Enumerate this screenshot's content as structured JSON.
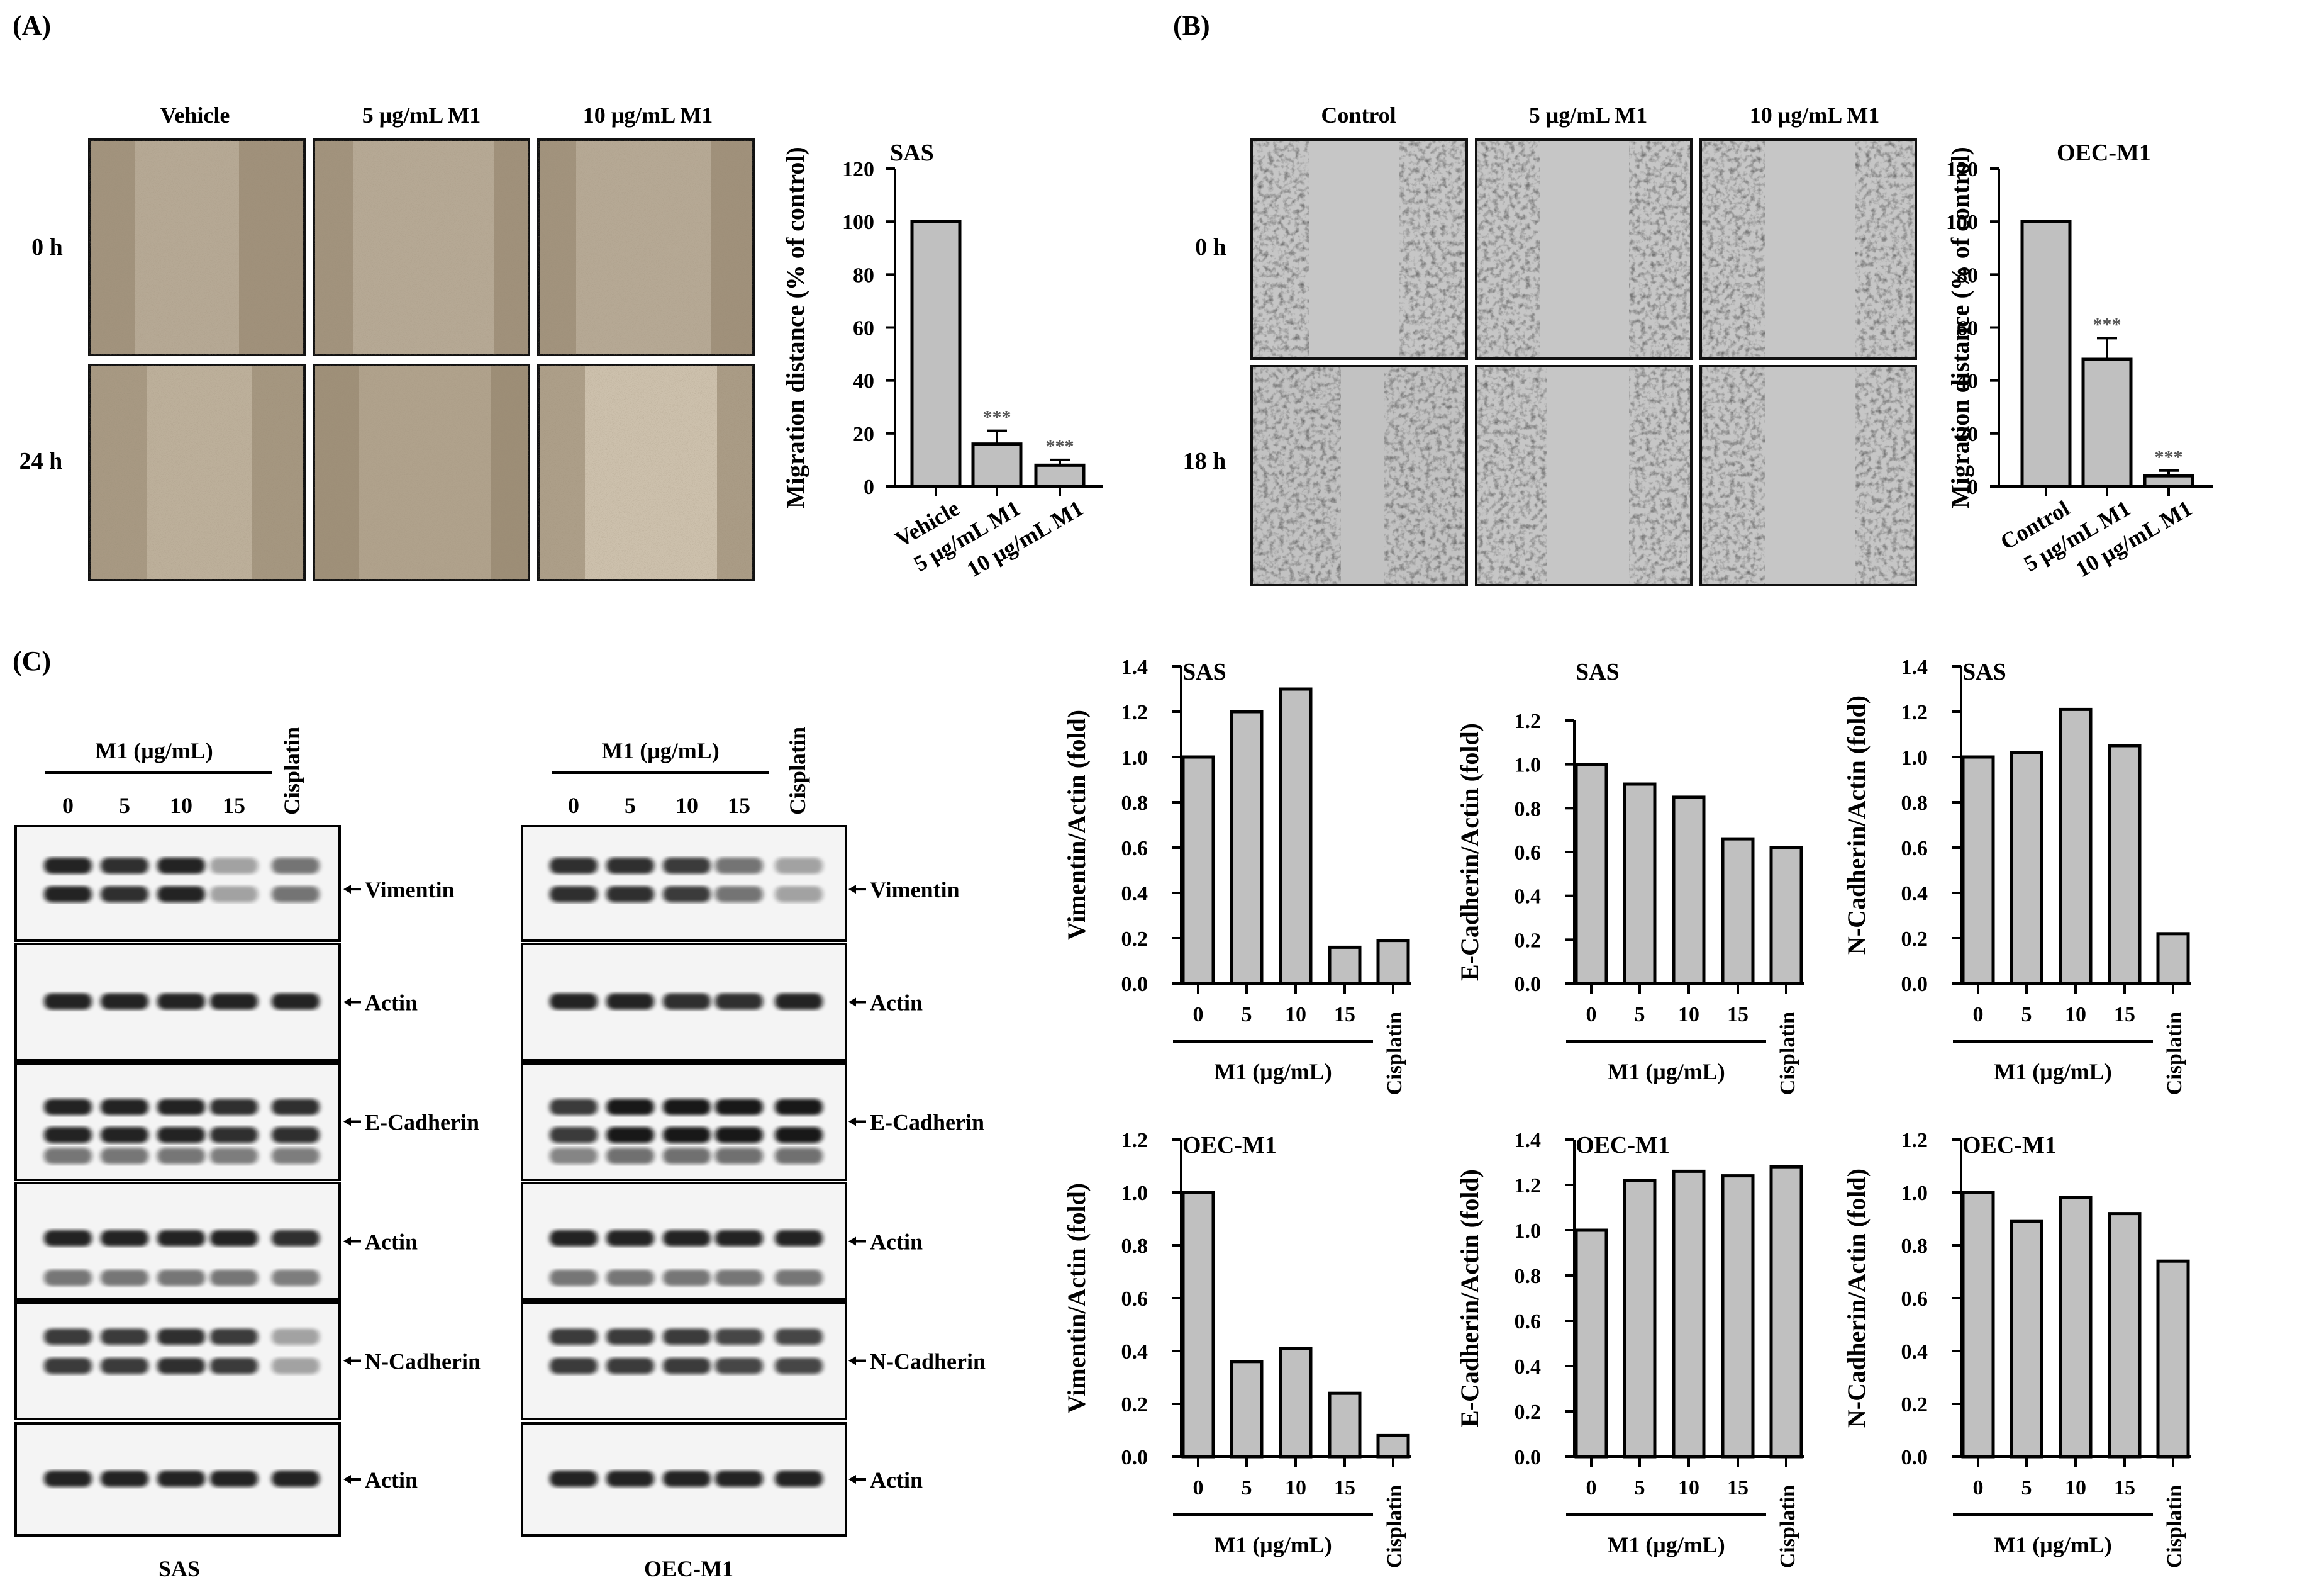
{
  "panels": {
    "a": "(A)",
    "b": "(B)",
    "c": "(C)"
  },
  "panel_a": {
    "columns": [
      "Vehicle",
      "5 μg/mL M1",
      "10 μg/mL M1"
    ],
    "rows": [
      "0 h",
      "24 h"
    ]
  },
  "panel_b": {
    "columns": [
      "Control",
      "5 μg/mL M1",
      "10 μg/mL M1"
    ],
    "rows": [
      "0 h",
      "18 h"
    ]
  },
  "blots": {
    "group_label": "M1 (μg/mL)",
    "doses": [
      "0",
      "5",
      "10",
      "15"
    ],
    "cisplatin": "Cisplatin",
    "markers": [
      "Vimentin",
      "Actin",
      "E-Cadherin",
      "Actin",
      "N-Cadherin",
      "Actin"
    ],
    "cell_lines": [
      "SAS",
      "OEC-M1"
    ]
  },
  "chart_data": [
    {
      "type": "bar",
      "title": "SAS",
      "ylabel": "Migration distance (% of control)",
      "categories": [
        "Vehicle",
        "5 μg/mL M1",
        "10 μg/mL M1"
      ],
      "values": [
        100,
        16,
        8
      ],
      "error": [
        0,
        5,
        2
      ],
      "annotations": [
        "",
        "***",
        "***"
      ],
      "ylim": [
        0,
        120
      ],
      "ticks": [
        "0",
        "20",
        "40",
        "60",
        "80",
        "100",
        "120"
      ]
    },
    {
      "type": "bar",
      "title": "OEC-M1",
      "ylabel": "Migration distance (% of control)",
      "categories": [
        "Control",
        "5 μg/mL M1",
        "10 μg/mL M1"
      ],
      "values": [
        100,
        48,
        4
      ],
      "error": [
        0,
        8,
        2
      ],
      "annotations": [
        "",
        "***",
        "***"
      ],
      "ylim": [
        0,
        120
      ],
      "ticks": [
        "0",
        "20",
        "40",
        "60",
        "80",
        "100",
        "120"
      ]
    },
    {
      "type": "bar",
      "title": "SAS",
      "ylabel": "Vimentin/Actin (fold)",
      "categories": [
        "0",
        "5",
        "10",
        "15",
        "Cisplatin"
      ],
      "values": [
        1.0,
        1.2,
        1.3,
        0.16,
        0.19
      ],
      "xlabel": "M1 (μg/mL)",
      "ylim": [
        0,
        1.4
      ],
      "ticks": [
        "0.0",
        "0.2",
        "0.4",
        "0.6",
        "0.8",
        "1.0",
        "1.2",
        "1.4"
      ]
    },
    {
      "type": "bar",
      "title": "SAS",
      "ylabel": "E-Cadherin/Actin (fold)",
      "categories": [
        "0",
        "5",
        "10",
        "15",
        "Cisplatin"
      ],
      "values": [
        1.0,
        0.91,
        0.85,
        0.66,
        0.62
      ],
      "xlabel": "M1 (μg/mL)",
      "ylim": [
        0,
        1.2
      ],
      "ticks": [
        "0.0",
        "0.2",
        "0.4",
        "0.6",
        "0.8",
        "1.0",
        "1.2"
      ]
    },
    {
      "type": "bar",
      "title": "SAS",
      "ylabel": "N-Cadherin/Actin (fold)",
      "categories": [
        "0",
        "5",
        "10",
        "15",
        "Cisplatin"
      ],
      "values": [
        1.0,
        1.02,
        1.21,
        1.05,
        0.22
      ],
      "xlabel": "M1 (μg/mL)",
      "ylim": [
        0,
        1.4
      ],
      "ticks": [
        "0.0",
        "0.2",
        "0.4",
        "0.6",
        "0.8",
        "1.0",
        "1.2",
        "1.4"
      ]
    },
    {
      "type": "bar",
      "title": "OEC-M1",
      "ylabel": "Vimentin/Actin (fold)",
      "categories": [
        "0",
        "5",
        "10",
        "15",
        "Cisplatin"
      ],
      "values": [
        1.0,
        0.36,
        0.41,
        0.24,
        0.08
      ],
      "xlabel": "M1 (μg/mL)",
      "ylim": [
        0,
        1.2
      ],
      "ticks": [
        "0.0",
        "0.2",
        "0.4",
        "0.6",
        "0.8",
        "1.0",
        "1.2"
      ]
    },
    {
      "type": "bar",
      "title": "OEC-M1",
      "ylabel": "E-Cadherin/Actin (fold)",
      "categories": [
        "0",
        "5",
        "10",
        "15",
        "Cisplatin"
      ],
      "values": [
        1.0,
        1.22,
        1.26,
        1.24,
        1.28
      ],
      "xlabel": "M1 (μg/mL)",
      "ylim": [
        0,
        1.4
      ],
      "ticks": [
        "0.0",
        "0.2",
        "0.4",
        "0.6",
        "0.8",
        "1.0",
        "1.2",
        "1.4"
      ]
    },
    {
      "type": "bar",
      "title": "OEC-M1",
      "ylabel": "N-Cadherin/Actin (fold)",
      "categories": [
        "0",
        "5",
        "10",
        "15",
        "Cisplatin"
      ],
      "values": [
        1.0,
        0.89,
        0.98,
        0.92,
        0.74
      ],
      "xlabel": "M1 (μg/mL)",
      "ylim": [
        0,
        1.2
      ],
      "ticks": [
        "0.0",
        "0.2",
        "0.4",
        "0.6",
        "0.8",
        "1.0",
        "1.2"
      ]
    }
  ]
}
